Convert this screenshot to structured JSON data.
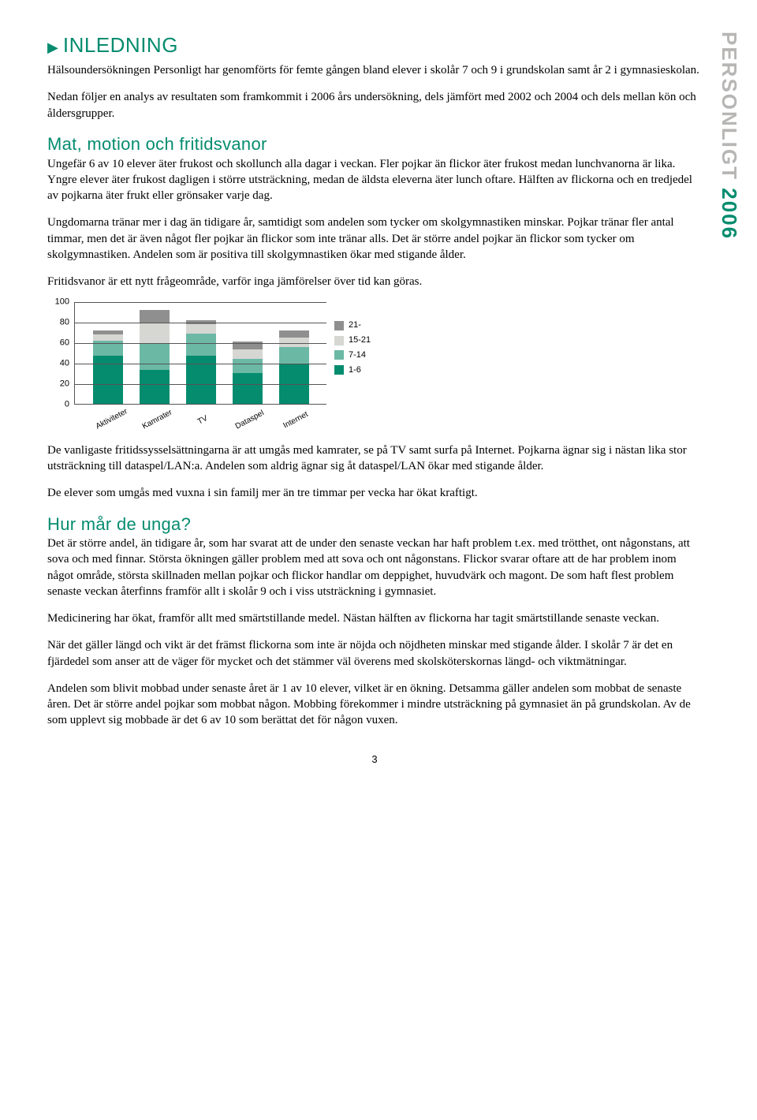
{
  "sidebar": {
    "label": "PERSONLIGT",
    "year": "2006"
  },
  "title": "INLEDNING",
  "p1": "Hälsoundersökningen Personligt har genomförts för femte gången bland elever i skolår 7 och 9 i grundskolan samt år 2 i gymnasieskolan.",
  "p2": "Nedan följer en analys av resultaten som framkommit i 2006 års undersökning, dels jämfört med 2002 och 2004 och dels mellan kön och åldersgrupper.",
  "h2a": "Mat, motion och fritidsvanor",
  "p3": "Ungefär 6 av 10 elever äter frukost och skollunch alla dagar i veckan. Fler pojkar än flickor äter frukost medan lunchvanorna är lika. Yngre elever äter frukost dagligen i större utsträckning, medan de äldsta eleverna äter lunch oftare. Hälften av flickorna och en tredjedel av pojkarna äter frukt eller grönsaker varje dag.",
  "p4": "Ungdomarna tränar mer i dag än tidigare år, samtidigt som andelen som tycker om skolgymnastiken minskar. Pojkar tränar fler antal timmar, men det är även något fler pojkar än flickor som inte tränar alls. Det är större andel pojkar än flickor som tycker om skolgymnastiken. Andelen som är positiva till skolgymnastiken ökar med stigande ålder.",
  "p5": "Fritidsvanor är ett nytt frågeområde, varför inga jämförelser över tid kan göras.",
  "chart": {
    "type": "stacked-bar",
    "ylim": [
      0,
      100
    ],
    "ytick_step": 20,
    "yticks": [
      "0",
      "20",
      "40",
      "60",
      "80",
      "100"
    ],
    "categories": [
      "Aktiviteter",
      "Kamrater",
      "TV",
      "Dataspel",
      "Internet"
    ],
    "series": [
      {
        "name": "1-6",
        "color": "#058c6f",
        "values": [
          47,
          33,
          47,
          30,
          39
        ]
      },
      {
        "name": "7-14",
        "color": "#6bb8a5",
        "values": [
          15,
          26,
          22,
          14,
          17
        ]
      },
      {
        "name": "15-21",
        "color": "#d6d6d3",
        "values": [
          6,
          20,
          9,
          9,
          9
        ]
      },
      {
        "name": "21-",
        "color": "#8f8f8f",
        "values": [
          4,
          13,
          4,
          8,
          7
        ]
      }
    ],
    "legend_order": [
      "21-",
      "15-21",
      "7-14",
      "1-6"
    ],
    "background_color": "#ffffff",
    "grid_color": "#555555",
    "font_family": "Arial",
    "font_size_axis": 11,
    "font_size_legend": 11
  },
  "p6": "De vanligaste fritidssysselsättningarna är att umgås med kamrater, se på TV samt surfa på Internet. Pojkarna ägnar sig i nästan lika stor utsträckning till dataspel/LAN:a. Andelen som aldrig ägnar sig åt dataspel/LAN ökar med stigande ålder.",
  "p7": "De elever som umgås med vuxna i sin familj mer än tre timmar per vecka har ökat kraftigt.",
  "h2b": "Hur mår de unga?",
  "p8": "Det är större andel, än tidigare år, som har svarat att de under den senaste veckan har haft problem t.ex. med trötthet, ont någonstans, att sova och med finnar. Största ökningen gäller problem med att sova och ont någonstans. Flickor svarar oftare att de har problem inom något område, största skillnaden mellan pojkar och flickor handlar om deppighet, huvudvärk och magont. De som haft flest problem senaste veckan återfinns framför allt i skolår 9 och i viss utsträckning i gymnasiet.",
  "p9": "Medicinering har ökat, framför allt med smärtstillande medel. Nästan hälften av flickorna har tagit smärtstillande senaste veckan.",
  "p10": "När det gäller längd och vikt är det främst flickorna som inte är nöjda och nöjdheten minskar med stigande ålder. I skolår 7 är det en fjärdedel som anser att de väger för mycket och det stämmer väl överens med skolsköterskornas längd- och viktmätningar.",
  "p11": "Andelen som blivit mobbad under senaste året är 1 av 10 elever, vilket är en ökning. Detsamma gäller andelen som mobbat de senaste åren. Det är större andel pojkar som mobbat någon. Mobbing förekommer i mindre utsträckning på gymnasiet än på grundskolan. Av de som upplevt sig mobbade är det 6 av 10 som berättat det för någon vuxen.",
  "page_number": "3"
}
